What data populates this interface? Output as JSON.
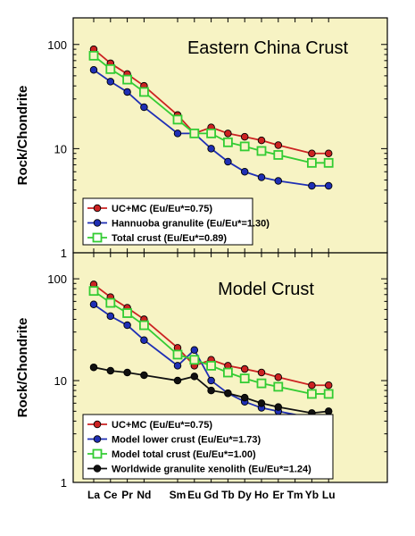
{
  "chart_data": [
    {
      "type": "line",
      "title": "Eastern China Crust",
      "ylabel": "Rock/Chondrite",
      "yscale": "log",
      "ylim": [
        1,
        180
      ],
      "yticks": [
        1,
        10,
        100
      ],
      "ytick_labels": [
        "1",
        "10",
        "100"
      ],
      "grid": false,
      "legend_position": "bottom-left",
      "background": "#f7f3c4",
      "categories": [
        "La",
        "Ce",
        "Pr",
        "Nd",
        "Sm",
        "Eu",
        "Gd",
        "Tb",
        "Dy",
        "Ho",
        "Er",
        "Tm",
        "Yb",
        "Lu"
      ],
      "x": [
        1,
        2,
        3,
        4,
        6,
        7,
        8,
        9,
        10,
        11,
        12,
        13,
        14,
        15
      ],
      "series": [
        {
          "name": "UC+MC (Eu/Eu*=0.75)",
          "color": "#cc2222",
          "marker": "circle",
          "values": [
            90,
            66,
            52,
            40,
            21,
            14,
            16,
            14,
            13,
            12,
            10.8,
            null,
            9,
            9
          ]
        },
        {
          "name": "Hannuoba granulite (Eu/Eu*=1.30)",
          "color": "#1f2fb5",
          "marker": "circle",
          "values": [
            57,
            44,
            35,
            25,
            14,
            14,
            10,
            7.5,
            6,
            5.3,
            4.9,
            null,
            4.4,
            4.4
          ]
        },
        {
          "name": "Total crust (Eu/Eu*=0.89)",
          "color": "#33cc33",
          "marker": "square",
          "values": [
            78,
            58,
            46,
            35,
            19,
            14,
            14,
            11.5,
            10.5,
            9.5,
            8.7,
            null,
            7.3,
            7.3
          ]
        }
      ]
    },
    {
      "type": "line",
      "title": "Model Crust",
      "ylabel": "Rock/Chondrite",
      "yscale": "log",
      "ylim": [
        1,
        180
      ],
      "yticks": [
        1,
        10,
        100
      ],
      "ytick_labels": [
        "1",
        "10",
        "100"
      ],
      "grid": false,
      "legend_position": "bottom-left",
      "background": "#f7f3c4",
      "categories": [
        "La",
        "Ce",
        "Pr",
        "Nd",
        "Sm",
        "Eu",
        "Gd",
        "Tb",
        "Dy",
        "Ho",
        "Er",
        "Tm",
        "Yb",
        "Lu"
      ],
      "x": [
        1,
        2,
        3,
        4,
        6,
        7,
        8,
        9,
        10,
        11,
        12,
        13,
        14,
        15
      ],
      "xtick_labels": [
        "La",
        "Ce",
        "Pr",
        "Nd",
        "Sm",
        "Eu",
        "Gd",
        "Tb",
        "Dy",
        "Ho",
        "Er",
        "Tm",
        "Yb",
        "Lu"
      ],
      "series": [
        {
          "name": "UC+MC (Eu/Eu*=0.75)",
          "color": "#cc2222",
          "marker": "circle",
          "values": [
            88,
            66,
            52,
            40,
            21,
            14,
            16,
            14,
            13,
            12,
            10.8,
            null,
            9,
            9
          ]
        },
        {
          "name": "Model lower crust (Eu/Eu*=1.73)",
          "color": "#1f2fb5",
          "marker": "circle",
          "values": [
            56,
            43,
            35,
            25,
            14,
            20,
            10,
            7.5,
            6.2,
            5.4,
            5,
            null,
            4.3,
            4.4
          ]
        },
        {
          "name": "Model total crust (Eu/Eu*=1.00)",
          "color": "#33cc33",
          "marker": "square",
          "values": [
            76,
            58,
            46,
            35,
            18,
            16,
            14,
            12,
            10.5,
            9.4,
            8.7,
            null,
            7.4,
            7.4
          ]
        },
        {
          "name": "Worldwide granulite xenolith (Eu/Eu*=1.24)",
          "color": "#111111",
          "marker": "circle",
          "values": [
            13.5,
            12.5,
            12,
            11.3,
            10,
            11,
            8,
            7.5,
            6.8,
            6,
            5.5,
            null,
            4.8,
            5
          ]
        }
      ]
    }
  ]
}
